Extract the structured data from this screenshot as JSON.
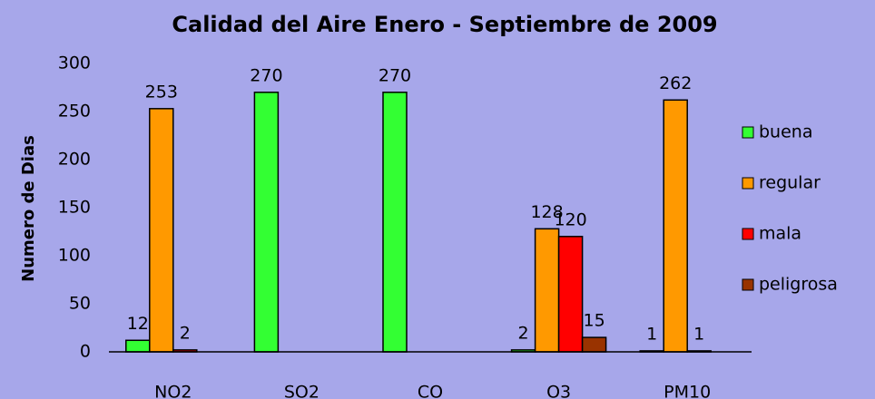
{
  "chart_data": {
    "type": "bar",
    "title": "Calidad del Aire  Enero - Septiembre de 2009",
    "y_label": "Numero de Dias",
    "categories": [
      "NO2",
      "SO2",
      "CO",
      "O3",
      "PM10"
    ],
    "series": [
      {
        "name": "buena",
        "color": "#33ff33",
        "values": [
          12,
          270,
          270,
          2,
          1
        ]
      },
      {
        "name": "regular",
        "color": "#ff9900",
        "values": [
          253,
          null,
          null,
          128,
          262
        ]
      },
      {
        "name": "mala",
        "color": "#ff0000",
        "values": [
          2,
          null,
          null,
          120,
          1
        ]
      },
      {
        "name": "peligrosa",
        "color": "#993300",
        "values": [
          null,
          null,
          null,
          15,
          null
        ]
      }
    ],
    "ylim": [
      0,
      300
    ],
    "yticks": [
      0,
      50,
      100,
      150,
      200,
      250,
      300
    ],
    "grid": false,
    "legend": "right"
  }
}
